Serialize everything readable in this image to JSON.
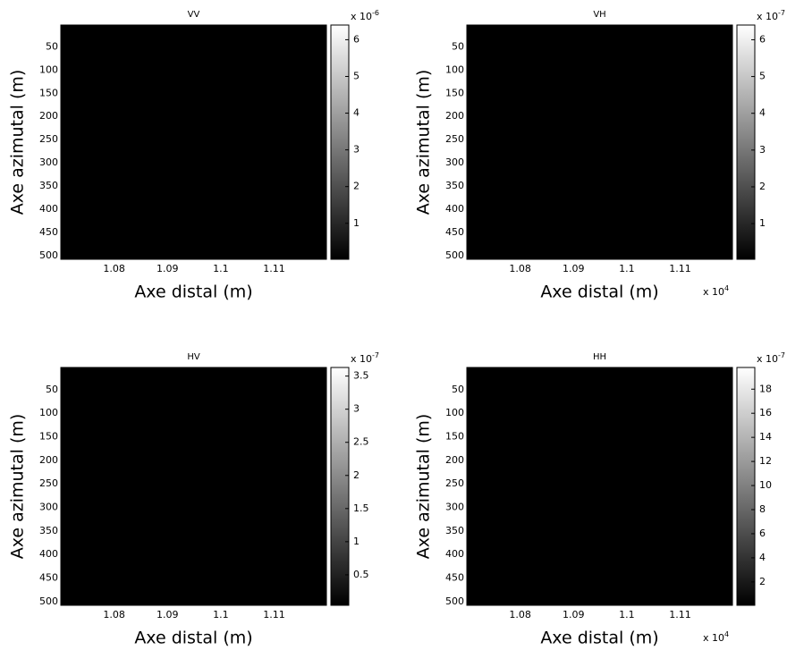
{
  "chart_data": [
    {
      "type": "image",
      "title": "VV",
      "xlabel": "Axe distal (m)",
      "ylabel": "Axe azimutal (m)",
      "xlim": [
        10700,
        11198
      ],
      "xticks": [
        {
          "value": 10800,
          "label": "1.08"
        },
        {
          "value": 10900,
          "label": "1.09"
        },
        {
          "value": 11000,
          "label": "1.1"
        },
        {
          "value": 11100,
          "label": "1.11"
        }
      ],
      "ylim": [
        3,
        508
      ],
      "y_inverted": true,
      "yticks": [
        50,
        100,
        150,
        200,
        250,
        300,
        350,
        400,
        450,
        500
      ],
      "clim": [
        0.02,
        6.4
      ],
      "cticks": [
        1,
        2,
        3,
        4,
        5,
        6
      ],
      "c_multiplier": {
        "base": "x 10",
        "exponent": "-6"
      },
      "colormap": "gray"
    },
    {
      "type": "image",
      "title": "VH",
      "xlabel": "Axe distal (m)",
      "ylabel": "Axe azimutal (m)",
      "xlim": [
        10700,
        11198
      ],
      "xticks": [
        {
          "value": 10800,
          "label": "1.08"
        },
        {
          "value": 10900,
          "label": "1.09"
        },
        {
          "value": 11000,
          "label": "1.1"
        },
        {
          "value": 11100,
          "label": "1.11"
        }
      ],
      "x_multiplier": {
        "base": "x 10",
        "exponent": "4"
      },
      "ylim": [
        3,
        508
      ],
      "y_inverted": true,
      "yticks": [
        50,
        100,
        150,
        200,
        250,
        300,
        350,
        400,
        450,
        500
      ],
      "clim": [
        0.03,
        6.4
      ],
      "cticks": [
        1,
        2,
        3,
        4,
        5,
        6
      ],
      "c_multiplier": {
        "base": "x 10",
        "exponent": "-7"
      },
      "colormap": "gray"
    },
    {
      "type": "image",
      "title": "HV",
      "xlabel": "Axe distal (m)",
      "ylabel": "Axe azimutal (m)",
      "xlim": [
        10700,
        11198
      ],
      "xticks": [
        {
          "value": 10800,
          "label": "1.08"
        },
        {
          "value": 10900,
          "label": "1.09"
        },
        {
          "value": 11000,
          "label": "1.1"
        },
        {
          "value": 11100,
          "label": "1.11"
        }
      ],
      "ylim": [
        3,
        508
      ],
      "y_inverted": true,
      "yticks": [
        50,
        100,
        150,
        200,
        250,
        300,
        350,
        400,
        450,
        500
      ],
      "clim": [
        0.04,
        3.63
      ],
      "cticks": [
        0.5,
        1,
        1.5,
        2,
        2.5,
        3,
        3.5
      ],
      "c_multiplier": {
        "base": "x 10",
        "exponent": "-7"
      },
      "colormap": "gray"
    },
    {
      "type": "image",
      "title": "HH",
      "xlabel": "Axe distal (m)",
      "ylabel": "Axe azimutal (m)",
      "xlim": [
        10700,
        11198
      ],
      "xticks": [
        {
          "value": 10800,
          "label": "1.08"
        },
        {
          "value": 10900,
          "label": "1.09"
        },
        {
          "value": 11000,
          "label": "1.1"
        },
        {
          "value": 11100,
          "label": "1.11"
        }
      ],
      "x_multiplier": {
        "base": "x 10",
        "exponent": "4"
      },
      "ylim": [
        3,
        508
      ],
      "y_inverted": true,
      "yticks": [
        50,
        100,
        150,
        200,
        250,
        300,
        350,
        400,
        450,
        500
      ],
      "clim": [
        0.06,
        19.8
      ],
      "cticks": [
        2,
        4,
        6,
        8,
        10,
        12,
        14,
        16,
        18
      ],
      "c_multiplier": {
        "base": "x 10",
        "exponent": "-7"
      },
      "colormap": "gray"
    }
  ]
}
